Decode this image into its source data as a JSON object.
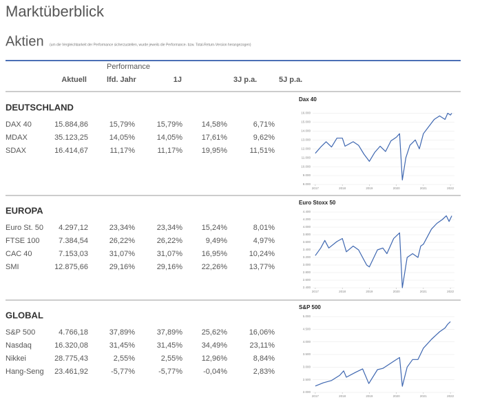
{
  "header": {
    "title": "Marktüberblick",
    "section": "Aktien",
    "note": "(um die Vergleichbarkeit der Performance sicherzustellen, wurde jeweils die Performance- bzw. Total-Return-Version herangezogen)"
  },
  "table": {
    "columns": [
      "Aktuell",
      "Performance",
      "lfd. Jahr",
      "1J",
      "3J p.a.",
      "5J p.a."
    ],
    "groups": [
      {
        "name": "DEUTSCHLAND",
        "rows": [
          [
            "DAX 40",
            "15.884,86",
            "15,79%",
            "15,79%",
            "14,58%",
            "6,71%"
          ],
          [
            "MDAX",
            "35.123,25",
            "14,05%",
            "14,05%",
            "17,61%",
            "9,62%"
          ],
          [
            "SDAX",
            "16.414,67",
            "11,17%",
            "11,17%",
            "19,95%",
            "11,51%"
          ]
        ],
        "chart": {
          "type": "line",
          "title": "Dax 40",
          "color": "#3d66b0",
          "grid": true,
          "x": [
            2017.0,
            2017.2,
            2017.4,
            2017.6,
            2017.8,
            2018.0,
            2018.1,
            2018.4,
            2018.6,
            2018.8,
            2019.0,
            2019.2,
            2019.4,
            2019.6,
            2019.8,
            2020.0,
            2020.12,
            2020.22,
            2020.35,
            2020.5,
            2020.7,
            2020.85,
            2021.0,
            2021.2,
            2021.4,
            2021.6,
            2021.8,
            2021.9,
            2022.0,
            2022.05
          ],
          "values": [
            11500,
            12200,
            12800,
            12200,
            13200,
            13200,
            12300,
            12800,
            12400,
            11400,
            10600,
            11600,
            12300,
            11700,
            12900,
            13300,
            13700,
            8500,
            11000,
            12400,
            13000,
            12000,
            13700,
            14500,
            15300,
            15700,
            15300,
            16000,
            15800,
            16000
          ],
          "xlim": [
            2016.9,
            2022.15
          ],
          "xticks": [
            2017,
            2018,
            2019,
            2020,
            2021,
            2022
          ],
          "ylim": [
            8000,
            16500
          ],
          "yticks": [
            {
              "value": 8000,
              "label": "8.000"
            },
            {
              "value": 9000,
              "label": "9.000"
            },
            {
              "value": 10000,
              "label": "10.000"
            },
            {
              "value": 11000,
              "label": "11.000"
            },
            {
              "value": 12000,
              "label": "12.000"
            },
            {
              "value": 13000,
              "label": "13.000"
            },
            {
              "value": 14000,
              "label": "14.000"
            },
            {
              "value": 15000,
              "label": "15.000"
            },
            {
              "value": 16000,
              "label": "16.000"
            }
          ]
        }
      },
      {
        "name": "EUROPA",
        "rows": [
          [
            "Euro St. 50",
            "4.297,12",
            "23,34%",
            "23,34%",
            "15,24%",
            "8,01%"
          ],
          [
            "FTSE 100",
            "7.384,54",
            "26,22%",
            "26,22%",
            "9,49%",
            "4,97%"
          ],
          [
            "CAC 40",
            "7.153,03",
            "31,07%",
            "31,07%",
            "16,95%",
            "10,24%"
          ],
          [
            "SMI",
            "12.875,66",
            "29,16%",
            "29,16%",
            "22,26%",
            "13,77%"
          ]
        ],
        "chart": {
          "type": "line",
          "title": "Euro Stoxx 50",
          "color": "#3d66b0",
          "grid": true,
          "x": [
            2017.0,
            2017.2,
            2017.35,
            2017.5,
            2017.8,
            2018.0,
            2018.15,
            2018.4,
            2018.6,
            2018.9,
            2019.0,
            2019.3,
            2019.5,
            2019.65,
            2019.9,
            2020.12,
            2020.22,
            2020.4,
            2020.6,
            2020.8,
            2020.9,
            2021.0,
            2021.3,
            2021.5,
            2021.7,
            2021.85,
            2021.95,
            2022.05
          ],
          "values": [
            3250,
            3450,
            3650,
            3450,
            3620,
            3700,
            3350,
            3500,
            3400,
            3000,
            2950,
            3400,
            3450,
            3300,
            3700,
            3850,
            2400,
            3200,
            3300,
            3200,
            3500,
            3550,
            3950,
            4100,
            4200,
            4300,
            4150,
            4300
          ],
          "xlim": [
            2016.9,
            2022.15
          ],
          "xticks": [
            2017,
            2018,
            2019,
            2020,
            2021,
            2022
          ],
          "ylim": [
            2400,
            4400
          ],
          "yticks": [
            {
              "value": 2400,
              "label": "2.400"
            },
            {
              "value": 2600,
              "label": "2.600"
            },
            {
              "value": 2800,
              "label": "2.800"
            },
            {
              "value": 3000,
              "label": "3.000"
            },
            {
              "value": 3200,
              "label": "3.200"
            },
            {
              "value": 3400,
              "label": "3.400"
            },
            {
              "value": 3600,
              "label": "3.600"
            },
            {
              "value": 3800,
              "label": "3.800"
            },
            {
              "value": 4000,
              "label": "4.000"
            },
            {
              "value": 4200,
              "label": "4.200"
            },
            {
              "value": 4400,
              "label": "4.400"
            }
          ]
        }
      },
      {
        "name": "GLOBAL",
        "rows": [
          [
            "S&P 500",
            "4.766,18",
            "37,89%",
            "37,89%",
            "25,62%",
            "16,06%"
          ],
          [
            "Nasdaq",
            "16.320,08",
            "31,45%",
            "31,45%",
            "34,49%",
            "23,11%"
          ],
          [
            "Nikkei",
            "28.775,43",
            "2,55%",
            "2,55%",
            "12,96%",
            "8,84%"
          ],
          [
            "Hang-Seng",
            "23.461,92",
            "-5,77%",
            "-5,77%",
            "-0,04%",
            "2,83%"
          ]
        ],
        "chart": {
          "type": "line",
          "title": "S&P 500",
          "color": "#3d66b0",
          "grid": true,
          "x": [
            2017.0,
            2017.3,
            2017.6,
            2017.9,
            2018.05,
            2018.15,
            2018.5,
            2018.75,
            2018.98,
            2019.3,
            2019.5,
            2019.9,
            2020.12,
            2020.22,
            2020.4,
            2020.6,
            2020.8,
            2021.0,
            2021.3,
            2021.6,
            2021.8,
            2021.9,
            2022.0
          ],
          "values": [
            2250,
            2380,
            2470,
            2670,
            2850,
            2600,
            2800,
            2930,
            2350,
            2900,
            2950,
            3230,
            3380,
            2240,
            3000,
            3300,
            3300,
            3750,
            4100,
            4400,
            4550,
            4700,
            4800
          ],
          "xlim": [
            2016.9,
            2022.15
          ],
          "xticks": [
            2017,
            2018,
            2019,
            2020,
            2021,
            2022
          ],
          "ylim": [
            2000,
            5000
          ],
          "yticks": [
            {
              "value": 2000,
              "label": "2.000"
            },
            {
              "value": 2500,
              "label": "2.500"
            },
            {
              "value": 3000,
              "label": "3.000"
            },
            {
              "value": 3500,
              "label": "3.500"
            },
            {
              "value": 4000,
              "label": "4.000"
            },
            {
              "value": 4500,
              "label": "4.500"
            },
            {
              "value": 5000,
              "label": "5.000"
            }
          ]
        }
      }
    ]
  }
}
